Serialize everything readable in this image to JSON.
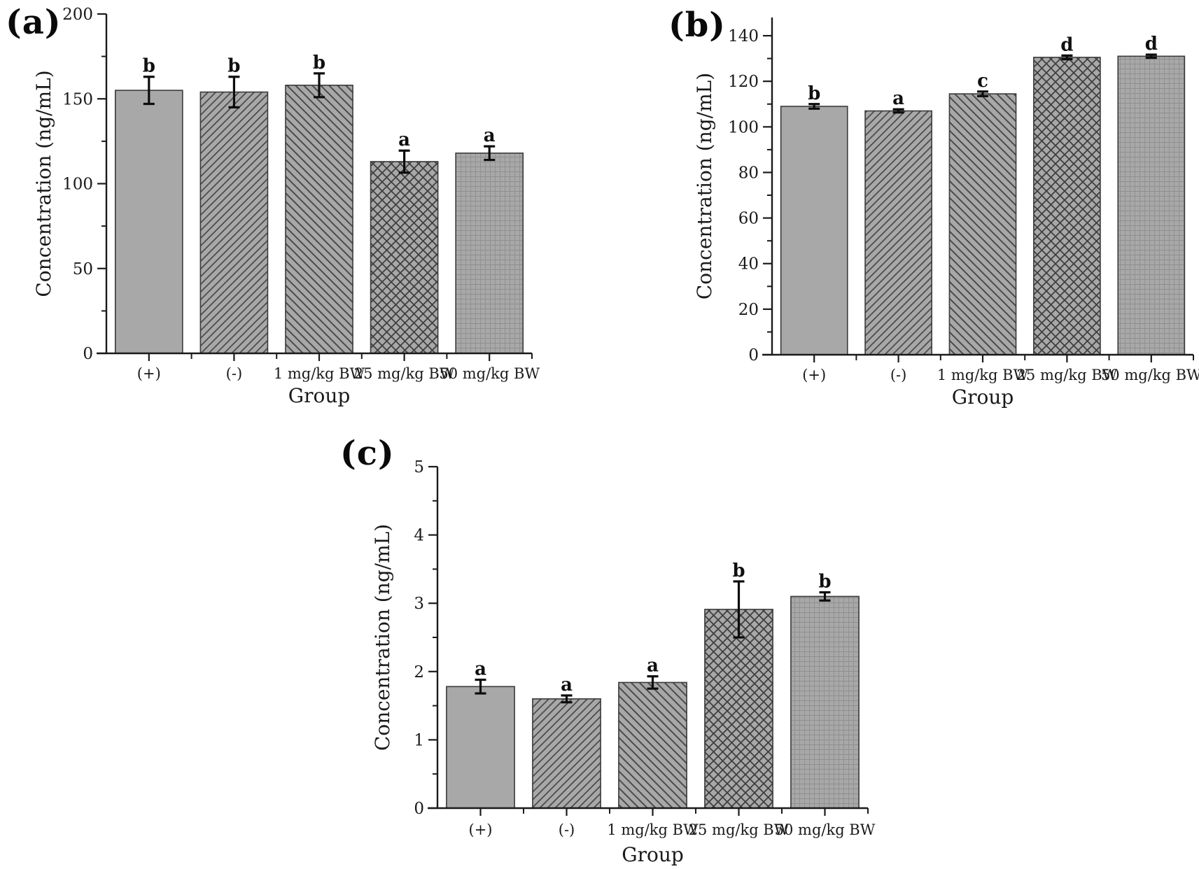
{
  "figure": {
    "background": "#ffffff",
    "description": "Three-panel bar figure of concentration by treatment group with error bars and significance letters"
  },
  "colors": {
    "bar_fill": "#a8a8a8",
    "bar_border": "#3a3a3a",
    "hatch_line": "#4a4a4a",
    "crosshatch_line": "#3f3f3f",
    "fine_grid_line": "#8f8f8f",
    "axis": "#1a1a1a",
    "error_bar": "#0d0d0d"
  },
  "chart_data": [
    {
      "panel": "(a)",
      "type": "bar",
      "title": "",
      "xlabel": "Group",
      "ylabel": "Concentration (ng/mL)",
      "categories": [
        "(+)",
        "(-)",
        "1 mg/kg BW",
        "25 mg/kg BW",
        "50 mg/kg BW"
      ],
      "values": [
        155,
        154,
        158,
        113,
        118
      ],
      "errors": [
        8,
        9,
        7,
        6.5,
        4
      ],
      "sig_letters": [
        "b",
        "b",
        "b",
        "a",
        "a"
      ],
      "ylim": [
        0,
        200
      ],
      "yticks": [
        0,
        50,
        100,
        150,
        200
      ],
      "yminor_step": 25,
      "grid": "off",
      "legend": "none",
      "bar_patterns": [
        "solid",
        "diag-up",
        "diag-down",
        "crosshatch",
        "fine-grid"
      ]
    },
    {
      "panel": "(b)",
      "type": "bar",
      "title": "",
      "xlabel": "Group",
      "ylabel": "Concentration (ng/mL)",
      "categories": [
        "(+)",
        "(-)",
        "1 mg/kg BW",
        "25 mg/kg BW",
        "50 mg/kg BW"
      ],
      "values": [
        109,
        107,
        114.5,
        130.5,
        131
      ],
      "errors": [
        1,
        0.7,
        1,
        0.8,
        0.7
      ],
      "sig_letters": [
        "b",
        "a",
        "c",
        "d",
        "d"
      ],
      "ylim": [
        0,
        148
      ],
      "yticks": [
        0,
        20,
        40,
        60,
        80,
        100,
        120,
        140
      ],
      "yminor_step": 10,
      "grid": "off",
      "legend": "none",
      "bar_patterns": [
        "solid",
        "diag-up",
        "diag-down",
        "crosshatch",
        "fine-grid"
      ]
    },
    {
      "panel": "(c)",
      "type": "bar",
      "title": "",
      "xlabel": "Group",
      "ylabel": "Concentration (ng/mL)",
      "categories": [
        "(+)",
        "(-)",
        "1 mg/kg BW",
        "25 mg/kg BW",
        "50 mg/kg BW"
      ],
      "values": [
        1.78,
        1.6,
        1.84,
        2.91,
        3.1
      ],
      "errors": [
        0.1,
        0.05,
        0.09,
        0.41,
        0.06
      ],
      "sig_letters": [
        "a",
        "a",
        "a",
        "b",
        "b"
      ],
      "ylim": [
        0,
        5
      ],
      "yticks": [
        0,
        1,
        2,
        3,
        4,
        5
      ],
      "yminor_step": 0.5,
      "grid": "off",
      "legend": "none",
      "bar_patterns": [
        "solid",
        "diag-up",
        "diag-down",
        "crosshatch",
        "fine-grid"
      ]
    }
  ]
}
